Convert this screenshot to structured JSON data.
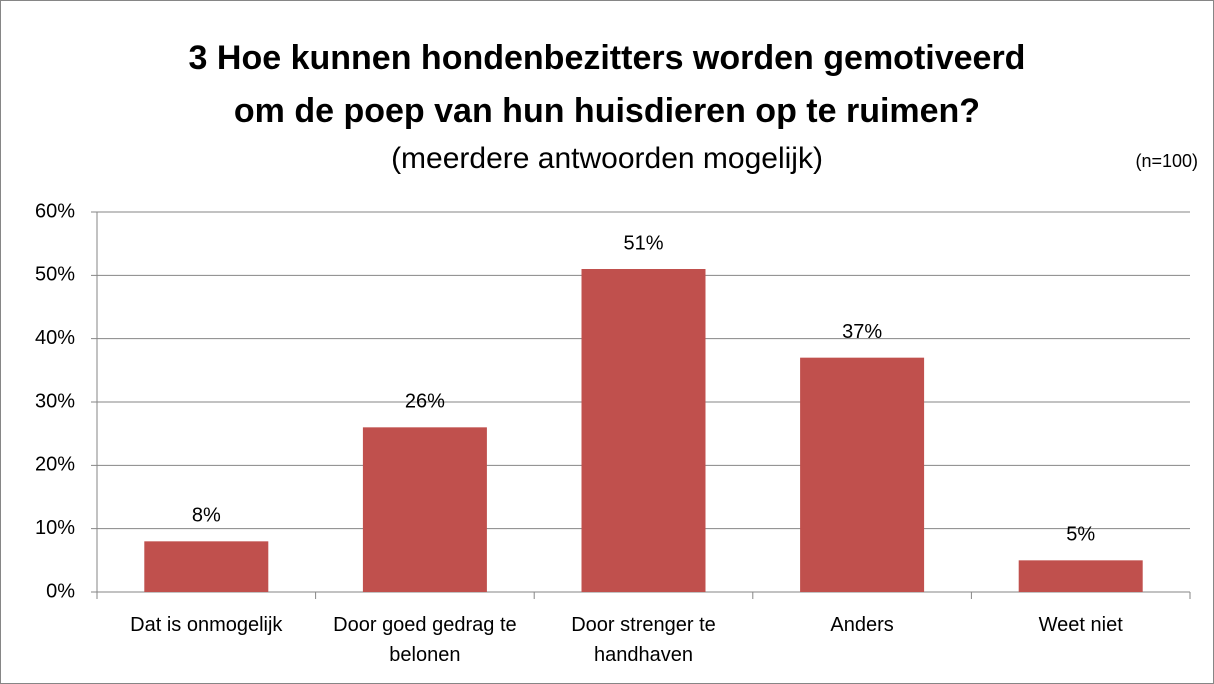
{
  "chart_data": {
    "type": "bar",
    "title": [
      "3 Hoe kunnen hondenbezitters worden gemotiveerd",
      "om de poep van hun huisdieren op te ruimen?"
    ],
    "subtitle": "(meerdere antwoorden mogelijk)",
    "annotation": "(n=100)",
    "categories": [
      "Dat is onmogelijk",
      "Door goed gedrag te belonen",
      "Door strenger te handhaven",
      "Anders",
      "Weet niet"
    ],
    "values": [
      8,
      26,
      51,
      37,
      5
    ],
    "value_labels": [
      "8%",
      "26%",
      "51%",
      "37%",
      "5%"
    ],
    "color": "#c0504d",
    "ylim": [
      0,
      60
    ],
    "yticks": [
      {
        "value": 0,
        "label": "0%"
      },
      {
        "value": 10,
        "label": "10%"
      },
      {
        "value": 20,
        "label": "20%"
      },
      {
        "value": 30,
        "label": "30%"
      },
      {
        "value": 40,
        "label": "40%"
      },
      {
        "value": 50,
        "label": "50%"
      },
      {
        "value": 60,
        "label": "60%"
      }
    ],
    "grid": true
  }
}
